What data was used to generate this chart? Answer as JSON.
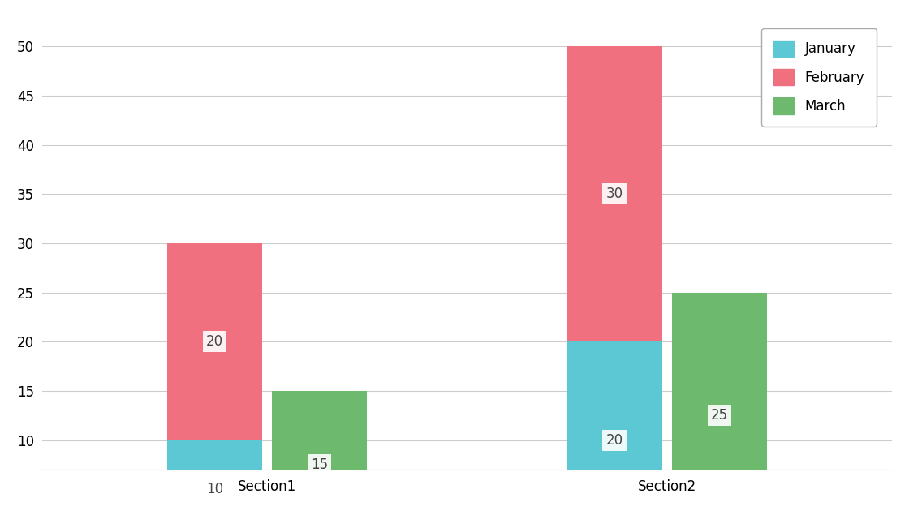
{
  "sections": [
    "Section1",
    "Section2"
  ],
  "january": [
    10,
    20
  ],
  "february": [
    20,
    30
  ],
  "march": [
    15,
    25
  ],
  "colors": {
    "january": "#5bc8d4",
    "february": "#f07080",
    "march": "#6db96d"
  },
  "ylim_min": 7,
  "ylim_max": 53,
  "yticks": [
    10,
    15,
    20,
    25,
    30,
    35,
    40,
    45,
    50
  ],
  "legend_labels": [
    "January",
    "February",
    "March"
  ],
  "background_color": "#ffffff",
  "plot_background": "#ffffff",
  "grid_color": "#cccccc",
  "label_fontsize": 12,
  "tick_fontsize": 12,
  "bar_width": 0.38,
  "bar_gap": 0.04,
  "group_positions": [
    0.0,
    1.6
  ]
}
